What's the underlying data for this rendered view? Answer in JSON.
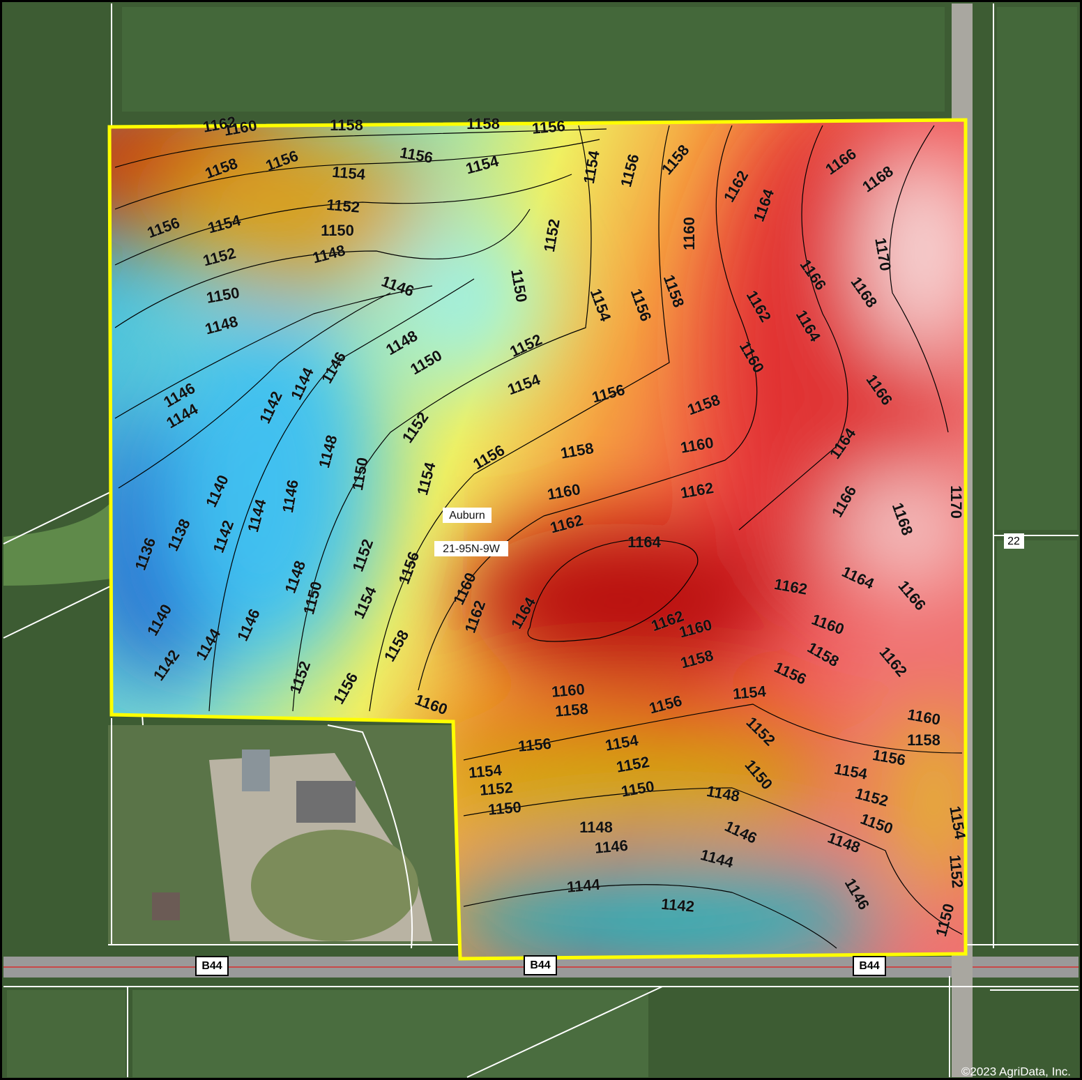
{
  "map": {
    "section_name": "Auburn",
    "section_code": "21-95N-9W",
    "road_labels": [
      "B44",
      "B44",
      "B44",
      "22"
    ],
    "copyright": "©2023 AgriData, Inc.",
    "contour_labels": [
      1162,
      1160,
      1158,
      1158,
      1156,
      1158,
      1156,
      1156,
      1154,
      1154,
      1154,
      1156,
      1158,
      1162,
      1164,
      1166,
      1168,
      1156,
      1154,
      1152,
      1150,
      1148,
      1152,
      1152,
      1160,
      1170,
      1146,
      1150,
      1148,
      1150,
      1154,
      1156,
      1158,
      1162,
      1166,
      1168,
      1164,
      1160,
      1148,
      1150,
      1152,
      1146,
      1144,
      1142,
      1146,
      1144,
      1154,
      1156,
      1158,
      1166,
      1152,
      1148,
      1150,
      1154,
      1156,
      1158,
      1160,
      1164,
      1160,
      1162,
      1140,
      1146,
      1144,
      1166,
      1168,
      1170,
      1142,
      1138,
      1136,
      1162,
      1164,
      1152,
      1156,
      1148,
      1150,
      1154,
      1160,
      1164,
      1162,
      1166,
      1164,
      1162,
      1140,
      1146,
      1144,
      1142,
      1162,
      1160,
      1160,
      1158,
      1162,
      1158,
      1156,
      1158,
      1152,
      1156,
      1160,
      1160,
      1158,
      1156,
      1154,
      1152,
      1160,
      1158,
      1156,
      1154,
      1156,
      1152,
      1154,
      1154,
      1150,
      1152,
      1152,
      1150,
      1148,
      1150,
      1150,
      1148,
      1146,
      1148,
      1146,
      1144,
      1154,
      1152,
      1144,
      1146,
      1142,
      1150
    ]
  }
}
